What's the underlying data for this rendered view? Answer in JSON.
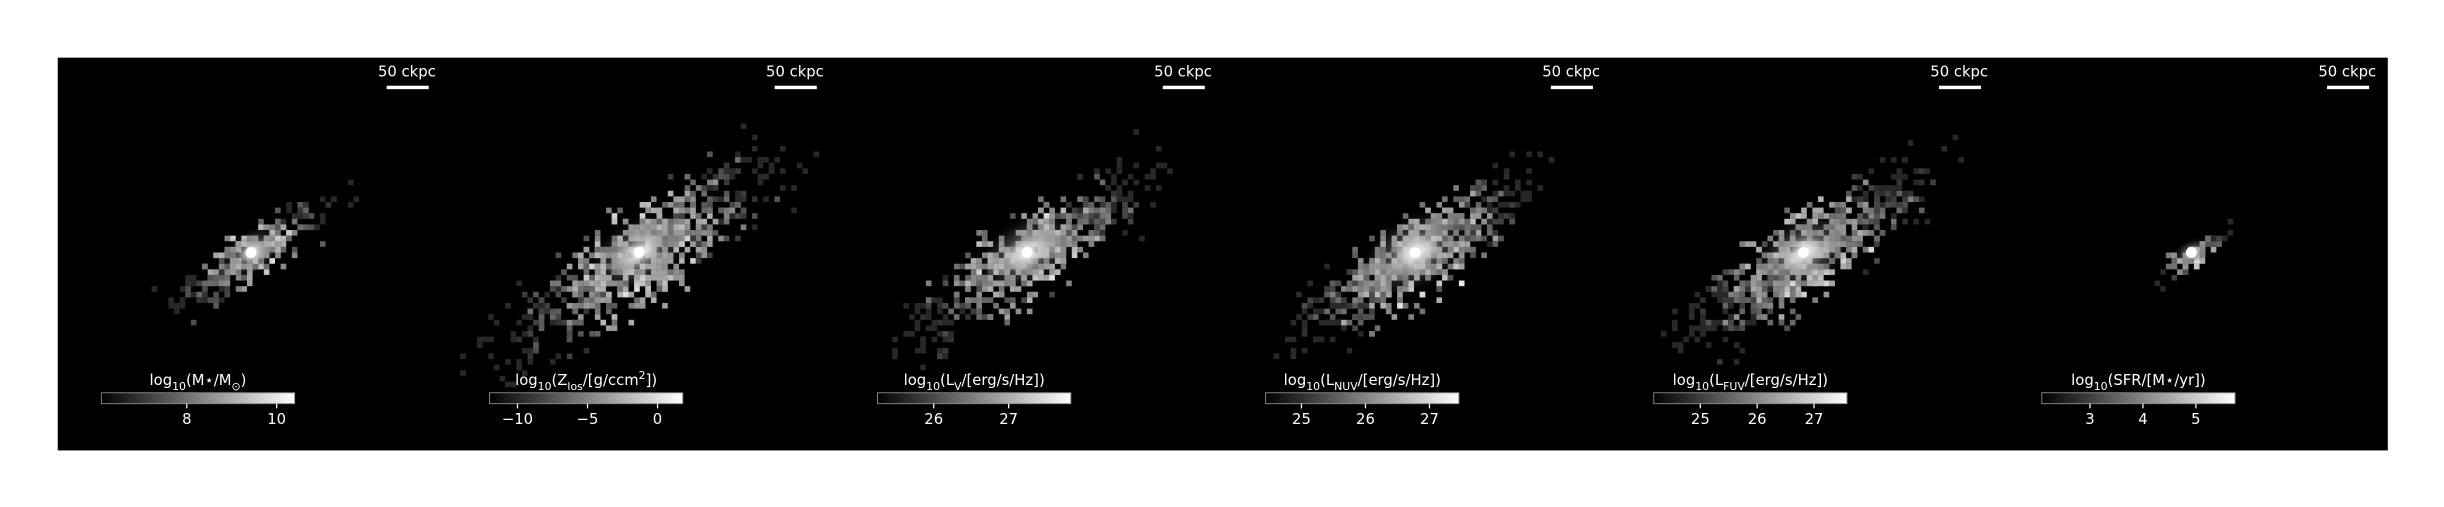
{
  "panels": [
    {
      "scale_bar": "50 ckpc",
      "colorbar": {
        "label": [
          {
            "text": "log"
          },
          {
            "text": "10",
            "pos": "sub"
          },
          {
            "text": "(M⋆/M"
          },
          {
            "text": "⊙",
            "pos": "sub"
          },
          {
            "text": ")"
          }
        ],
        "clim": [
          6.1,
          10.4
        ],
        "ticks": [
          8,
          10
        ]
      }
    },
    {
      "scale_bar": "50 ckpc",
      "colorbar": {
        "label": [
          {
            "text": "log"
          },
          {
            "text": "10",
            "pos": "sub"
          },
          {
            "text": "(Z"
          },
          {
            "text": "los",
            "pos": "sub"
          },
          {
            "text": "/[g/ccm"
          },
          {
            "text": "2",
            "pos": "sup"
          },
          {
            "text": "])"
          }
        ],
        "clim": [
          -12,
          1.8
        ],
        "ticks": [
          {
            "value": -10,
            "label": "−10"
          },
          {
            "value": -5,
            "label": "−5"
          },
          0
        ]
      }
    },
    {
      "scale_bar": "50 ckpc",
      "colorbar": {
        "label": [
          {
            "text": "log"
          },
          {
            "text": "10",
            "pos": "sub"
          },
          {
            "text": "(L"
          },
          {
            "text": "V",
            "pos": "sub"
          },
          {
            "text": "/[erg/s/Hz])"
          }
        ],
        "clim": [
          25.25,
          27.83
        ],
        "ticks": [
          26,
          27
        ]
      }
    },
    {
      "scale_bar": "50 ckpc",
      "colorbar": {
        "label": [
          {
            "text": "log"
          },
          {
            "text": "10",
            "pos": "sub"
          },
          {
            "text": "(L"
          },
          {
            "text": "NUV",
            "pos": "sub"
          },
          {
            "text": "/[erg/s/Hz])"
          }
        ],
        "clim": [
          24.44,
          27.46
        ],
        "ticks": [
          25,
          26,
          27
        ]
      }
    },
    {
      "scale_bar": "50 ckpc",
      "colorbar": {
        "label": [
          {
            "text": "log"
          },
          {
            "text": "10",
            "pos": "sub"
          },
          {
            "text": "(L"
          },
          {
            "text": "FUV",
            "pos": "sub"
          },
          {
            "text": "/[erg/s/Hz])"
          }
        ],
        "clim": [
          24.18,
          27.58
        ],
        "ticks": [
          25,
          26,
          27
        ]
      }
    },
    {
      "scale_bar": "50 ckpc",
      "colorbar": {
        "label": [
          {
            "text": "log"
          },
          {
            "text": "10",
            "pos": "sub"
          },
          {
            "text": "(SFR/[M⋆/yr])"
          }
        ],
        "clim": [
          2.09,
          5.74
        ],
        "ticks": [
          3,
          4,
          5
        ]
      }
    }
  ]
}
